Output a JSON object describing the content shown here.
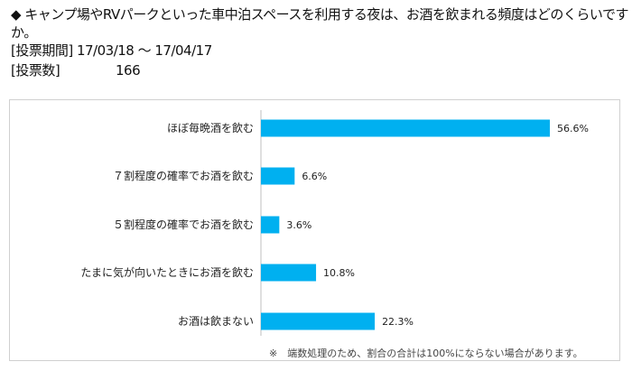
{
  "header": {
    "question_line1": "◆ キャンプ場やRVパークといった車中泊スペースを利用する夜は、お酒を飲まれる頻度はどのくらいです",
    "question_line2": "か。",
    "period": "[投票期間] 17/03/18 ～ 17/04/17",
    "votes_label": "[投票数]",
    "votes_value": "166"
  },
  "chart_data": {
    "type": "bar",
    "orientation": "horizontal",
    "categories": [
      "ほぼ毎晩酒を飲む",
      "７割程度の確率でお酒を飲む",
      "５割程度の確率でお酒を飲む",
      "たまに気が向いたときにお酒を飲む",
      "お酒は飲まない"
    ],
    "values": [
      56.6,
      6.6,
      3.6,
      10.8,
      22.3
    ],
    "value_labels": [
      "56.6%",
      "6.6%",
      "3.6%",
      "10.8%",
      "22.3%"
    ],
    "unit": "%",
    "xlim": [
      0,
      60
    ],
    "bar_color": "#00b0f0",
    "grid": false,
    "note": "※　端数処理のため、割合の合計は100%にならない場合があります。"
  }
}
